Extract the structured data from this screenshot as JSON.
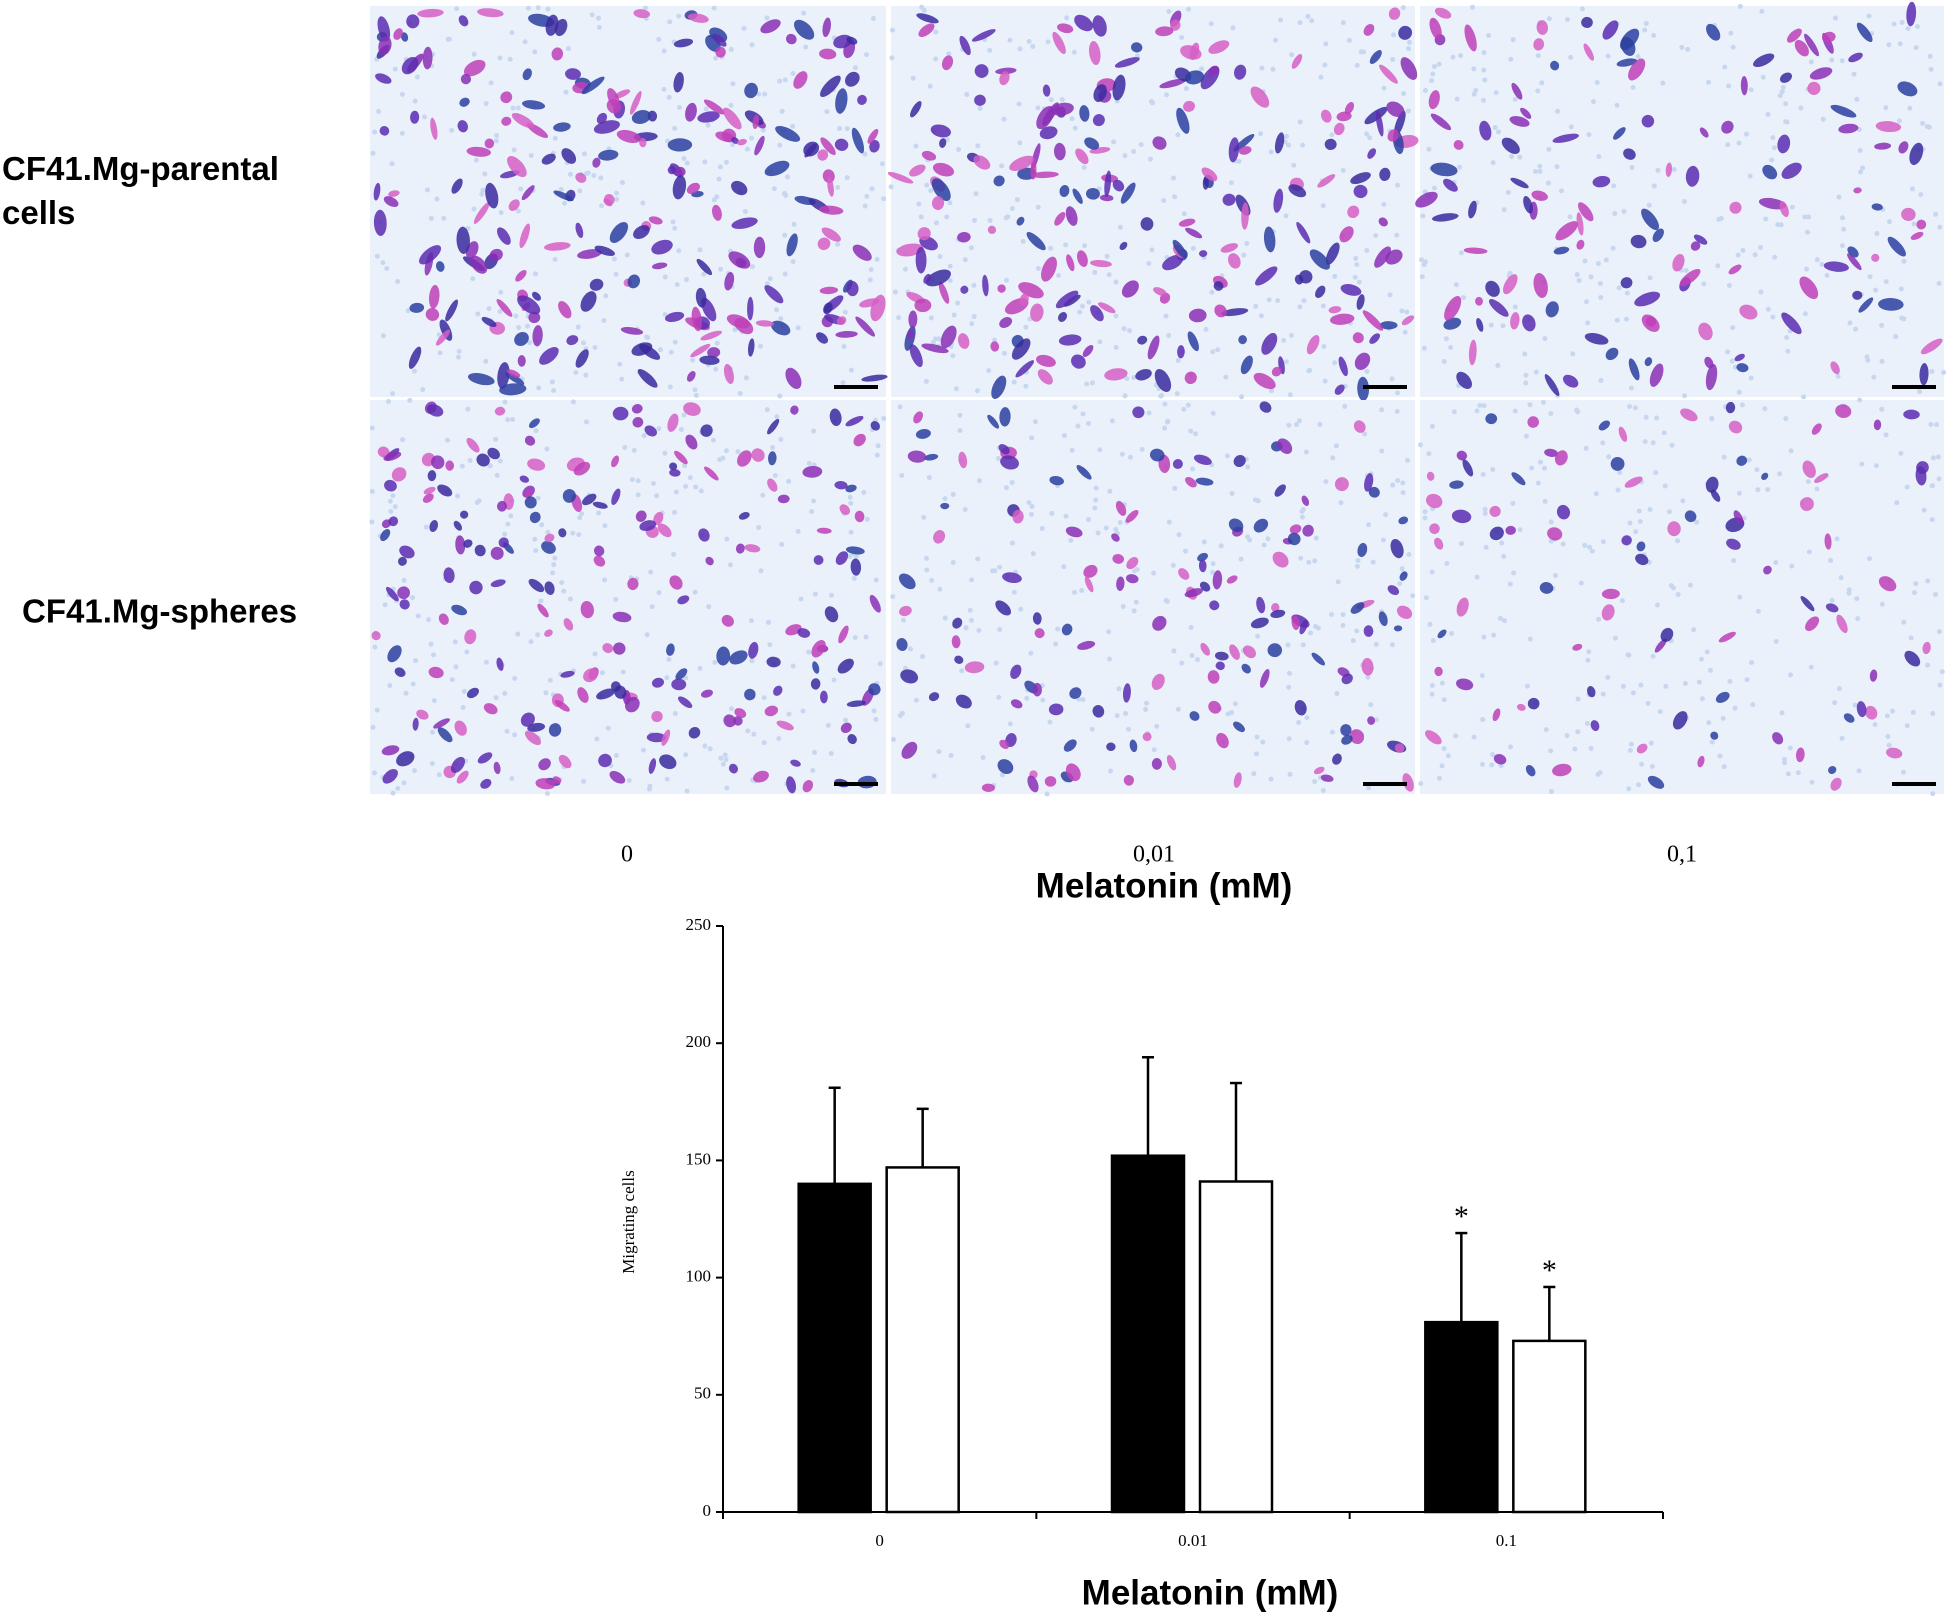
{
  "micrograph": {
    "row_labels": [
      "CF41.Mg-parental cells",
      "CF41.Mg-spheres"
    ],
    "column_labels": [
      "0",
      "0,01",
      "0,1"
    ],
    "x_label": "Melatonin (mM)"
  },
  "chart_data": {
    "type": "bar",
    "categories": [
      "0",
      "0.01",
      "0.1"
    ],
    "series": [
      {
        "color": "#000000",
        "values": [
          140,
          152,
          81
        ],
        "errors": [
          41,
          42,
          38
        ],
        "markers": [
          null,
          null,
          "*"
        ]
      },
      {
        "color": "#ffffff",
        "values": [
          147,
          141,
          73
        ],
        "errors": [
          25,
          42,
          23
        ],
        "markers": [
          null,
          null,
          "*"
        ]
      }
    ],
    "ylim": [
      0,
      250
    ],
    "yticks": [
      0,
      50,
      100,
      150,
      200,
      250
    ],
    "y_label": "Migrating cells",
    "x_label": "Melatonin (mM)"
  }
}
